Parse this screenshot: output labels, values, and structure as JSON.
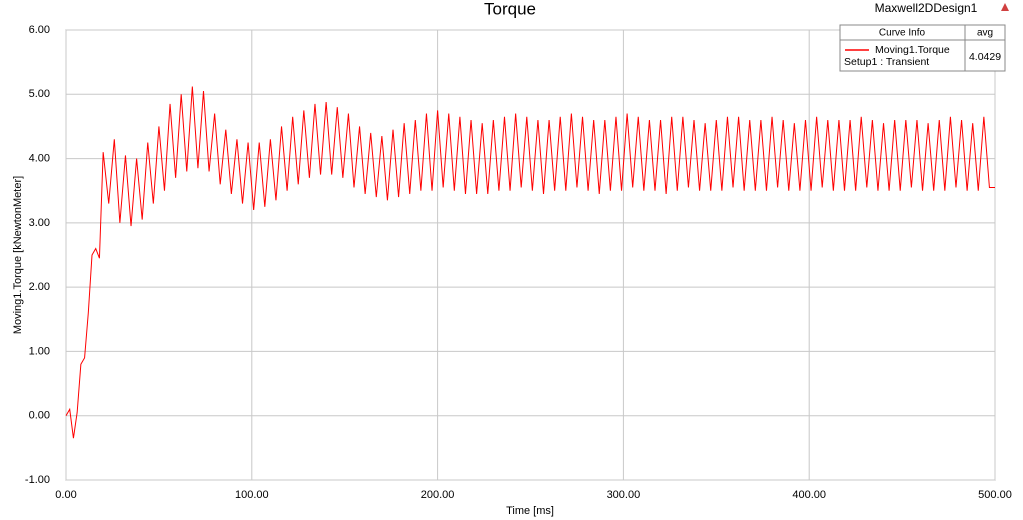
{
  "chart_data": {
    "type": "line",
    "title": "Torque",
    "design_name": "Maxwell2DDesign1",
    "xlabel": "Time [ms]",
    "ylabel": "Moving1.Torque [kNewtonMeter]",
    "legend_header": [
      "Curve Info",
      "avg"
    ],
    "series_context": "Setup1 : Transient",
    "x": [
      0,
      2,
      4,
      6,
      8,
      10,
      12,
      14,
      16,
      18,
      20,
      23,
      26,
      29,
      32,
      35,
      38,
      41,
      44,
      47,
      50,
      53,
      56,
      59,
      62,
      65,
      68,
      71,
      74,
      77,
      80,
      83,
      86,
      89,
      92,
      95,
      98,
      101,
      104,
      107,
      110,
      113,
      116,
      119,
      122,
      125,
      128,
      131,
      134,
      137,
      140,
      143,
      146,
      149,
      152,
      155,
      158,
      161,
      164,
      167,
      170,
      173,
      176,
      179,
      182,
      185,
      188,
      191,
      194,
      197,
      200,
      203,
      206,
      209,
      212,
      215,
      218,
      221,
      224,
      227,
      230,
      233,
      236,
      239,
      242,
      245,
      248,
      251,
      254,
      257,
      260,
      263,
      266,
      269,
      272,
      275,
      278,
      281,
      284,
      287,
      290,
      293,
      296,
      299,
      302,
      305,
      308,
      311,
      314,
      317,
      320,
      323,
      326,
      329,
      332,
      335,
      338,
      341,
      344,
      347,
      350,
      353,
      356,
      359,
      362,
      365,
      368,
      371,
      374,
      377,
      380,
      383,
      386,
      389,
      392,
      395,
      398,
      401,
      404,
      407,
      410,
      413,
      416,
      419,
      422,
      425,
      428,
      431,
      434,
      437,
      440,
      443,
      446,
      449,
      452,
      455,
      458,
      461,
      464,
      467,
      470,
      473,
      476,
      479,
      482,
      485,
      488,
      491,
      494,
      497,
      500
    ],
    "series": [
      {
        "name": "Moving1.Torque",
        "color": "#ff0000",
        "avg": 4.0429,
        "values": [
          0,
          0.1,
          -0.35,
          0.05,
          0.8,
          0.9,
          1.6,
          2.5,
          2.6,
          2.45,
          4.1,
          3.3,
          4.3,
          3.0,
          4.05,
          2.95,
          4.0,
          3.05,
          4.25,
          3.3,
          4.5,
          3.5,
          4.85,
          3.7,
          5.0,
          3.8,
          5.12,
          3.85,
          5.05,
          3.8,
          4.7,
          3.6,
          4.45,
          3.45,
          4.3,
          3.3,
          4.25,
          3.2,
          4.25,
          3.25,
          4.3,
          3.35,
          4.5,
          3.5,
          4.65,
          3.6,
          4.75,
          3.7,
          4.85,
          3.75,
          4.88,
          3.75,
          4.8,
          3.7,
          4.7,
          3.55,
          4.5,
          3.45,
          4.4,
          3.4,
          4.35,
          3.35,
          4.45,
          3.4,
          4.55,
          3.45,
          4.6,
          3.5,
          4.7,
          3.5,
          4.75,
          3.55,
          4.7,
          3.5,
          4.65,
          3.45,
          4.6,
          3.45,
          4.55,
          3.45,
          4.6,
          3.5,
          4.65,
          3.5,
          4.7,
          3.55,
          4.65,
          3.5,
          4.6,
          3.45,
          4.6,
          3.5,
          4.65,
          3.5,
          4.7,
          3.55,
          4.65,
          3.5,
          4.6,
          3.45,
          4.6,
          3.5,
          4.65,
          3.5,
          4.7,
          3.55,
          4.65,
          3.5,
          4.6,
          3.5,
          4.6,
          3.45,
          4.65,
          3.5,
          4.65,
          3.55,
          4.6,
          3.5,
          4.55,
          3.5,
          4.6,
          3.5,
          4.65,
          3.55,
          4.65,
          3.5,
          4.6,
          3.5,
          4.6,
          3.5,
          4.65,
          3.55,
          4.6,
          3.5,
          4.55,
          3.5,
          4.6,
          3.5,
          4.65,
          3.55,
          4.6,
          3.5,
          4.6,
          3.5,
          4.6,
          3.5,
          4.65,
          3.55,
          4.6,
          3.5,
          4.55,
          3.5,
          4.6,
          3.5,
          4.6,
          3.55,
          4.6,
          3.5,
          4.55,
          3.5,
          4.6,
          3.5,
          4.65,
          3.55,
          4.6,
          3.5,
          4.55,
          3.5,
          4.65,
          3.55,
          3.55
        ]
      }
    ],
    "xlim": [
      0,
      500
    ],
    "ylim": [
      -1,
      6
    ],
    "xticks": [
      {
        "value": 0,
        "label": "0.00"
      },
      {
        "value": 100,
        "label": "100.00"
      },
      {
        "value": 200,
        "label": "200.00"
      },
      {
        "value": 300,
        "label": "300.00"
      },
      {
        "value": 400,
        "label": "400.00"
      },
      {
        "value": 500,
        "label": "500.00"
      }
    ],
    "yticks": [
      {
        "value": -1,
        "label": "-1.00"
      },
      {
        "value": 0,
        "label": "0.00"
      },
      {
        "value": 1,
        "label": "1.00"
      },
      {
        "value": 2,
        "label": "2.00"
      },
      {
        "value": 3,
        "label": "3.00"
      },
      {
        "value": 4,
        "label": "4.00"
      },
      {
        "value": 5,
        "label": "5.00"
      },
      {
        "value": 6,
        "label": "6.00"
      }
    ],
    "grid": true
  }
}
